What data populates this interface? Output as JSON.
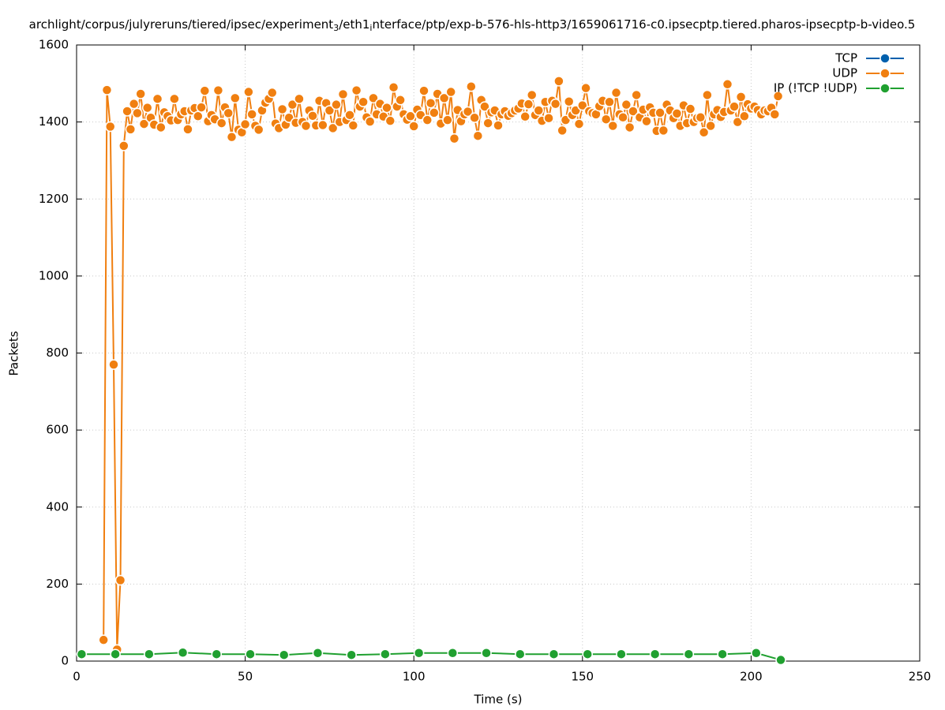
{
  "chart_data": {
    "type": "line",
    "title_parts": [
      "archlight/corpus/julyreruns/tiered/ipsec/experiment",
      "3",
      "/eth1",
      "i",
      "nterface/ptp/exp-b-576-hls-http3/1659061716-c0.ipsecptp.tiered.pharos-ipsecptp-b-video.5"
    ],
    "x_label": "Time (s)",
    "y_label": "Packets",
    "xlim": [
      0,
      250
    ],
    "xticks": [
      0,
      50,
      100,
      150,
      200,
      250
    ],
    "ylim": [
      0,
      1600
    ],
    "yticks": [
      0,
      200,
      400,
      600,
      800,
      1000,
      1200,
      1400,
      1600
    ],
    "grid": true,
    "legend": "top-right",
    "series": [
      {
        "name": "TCP",
        "color": "#0060ad",
        "x": [],
        "values": []
      },
      {
        "name": "UDP",
        "color": "#f07f10",
        "x": [
          8,
          9,
          10,
          11,
          12,
          13,
          14,
          15,
          16,
          17,
          18,
          19,
          20,
          21,
          22,
          23,
          24,
          25,
          26,
          27,
          28,
          29,
          30,
          31,
          32,
          33,
          34,
          35,
          36,
          37,
          38,
          39,
          40,
          41,
          42,
          43,
          44,
          45,
          46,
          47,
          48,
          49,
          50,
          51,
          52,
          53,
          54,
          55,
          56,
          57,
          58,
          59,
          60,
          61,
          62,
          63,
          64,
          65,
          66,
          67,
          68,
          69,
          70,
          71,
          72,
          73,
          74,
          75,
          76,
          77,
          78,
          79,
          80,
          81,
          82,
          83,
          84,
          85,
          86,
          87,
          88,
          89,
          90,
          91,
          92,
          93,
          94,
          95,
          96,
          97,
          98,
          99,
          100,
          101,
          102,
          103,
          104,
          105,
          106,
          107,
          108,
          109,
          110,
          111,
          112,
          113,
          114,
          115,
          116,
          117,
          118,
          119,
          120,
          121,
          122,
          123,
          124,
          125,
          126,
          127,
          128,
          129,
          130,
          131,
          132,
          133,
          134,
          135,
          136,
          137,
          138,
          139,
          140,
          141,
          142,
          143,
          144,
          145,
          146,
          147,
          148,
          149,
          150,
          151,
          152,
          153,
          154,
          155,
          156,
          157,
          158,
          159,
          160,
          161,
          162,
          163,
          164,
          165,
          166,
          167,
          168,
          169,
          170,
          171,
          172,
          173,
          174,
          175,
          176,
          177,
          178,
          179,
          180,
          181,
          182,
          183,
          184,
          185,
          186,
          187,
          188,
          189,
          190,
          191,
          192,
          193,
          194,
          195,
          196,
          197,
          198,
          199,
          200,
          201,
          202,
          203,
          204,
          205,
          206,
          207,
          208
        ],
        "values": [
          55,
          1483,
          1388,
          770,
          30,
          210,
          1338,
          1428,
          1381,
          1447,
          1423,
          1473,
          1395,
          1437,
          1411,
          1393,
          1460,
          1386,
          1425,
          1415,
          1404,
          1460,
          1405,
          1420,
          1428,
          1381,
          1430,
          1436,
          1415,
          1438,
          1481,
          1402,
          1418,
          1407,
          1482,
          1397,
          1438,
          1423,
          1361,
          1462,
          1380,
          1373,
          1394,
          1478,
          1420,
          1390,
          1380,
          1430,
          1450,
          1460,
          1476,
          1396,
          1384,
          1433,
          1393,
          1411,
          1445,
          1398,
          1460,
          1400,
          1390,
          1430,
          1416,
          1391,
          1455,
          1392,
          1449,
          1430,
          1384,
          1445,
          1400,
          1472,
          1405,
          1418,
          1391,
          1482,
          1440,
          1452,
          1412,
          1401,
          1462,
          1420,
          1447,
          1414,
          1437,
          1403,
          1490,
          1440,
          1457,
          1420,
          1406,
          1415,
          1389,
          1432,
          1418,
          1481,
          1405,
          1449,
          1424,
          1473,
          1396,
          1462,
          1405,
          1478,
          1357,
          1431,
          1402,
          1420,
          1427,
          1492,
          1411,
          1364,
          1457,
          1440,
          1397,
          1425,
          1430,
          1391,
          1420,
          1428,
          1416,
          1423,
          1430,
          1435,
          1448,
          1414,
          1446,
          1470,
          1418,
          1430,
          1403,
          1452,
          1410,
          1455,
          1447,
          1506,
          1378,
          1405,
          1453,
          1418,
          1430,
          1395,
          1443,
          1488,
          1428,
          1423,
          1420,
          1441,
          1455,
          1407,
          1452,
          1390,
          1476,
          1420,
          1412,
          1445,
          1386,
          1428,
          1470,
          1412,
          1432,
          1402,
          1438,
          1424,
          1377,
          1424,
          1378,
          1445,
          1430,
          1410,
          1422,
          1390,
          1443,
          1397,
          1434,
          1400,
          1410,
          1412,
          1373,
          1470,
          1390,
          1420,
          1431,
          1413,
          1426,
          1498,
          1430,
          1440,
          1400,
          1465,
          1415,
          1446,
          1435,
          1440,
          1431,
          1420,
          1430,
          1428,
          1437,
          1420,
          1467
        ]
      },
      {
        "name": "IP (!TCP  !UDP)",
        "color": "#20a030",
        "x": [
          1.5,
          11.5,
          21.5,
          31.5,
          41.5,
          51.5,
          61.5,
          71.5,
          81.5,
          91.5,
          101.5,
          111.5,
          121.5,
          131.5,
          141.5,
          151.5,
          161.5,
          171.5,
          181.5,
          191.5,
          201.5,
          208.8
        ],
        "values": [
          18,
          18,
          18,
          22,
          18,
          18,
          16,
          21,
          16,
          18,
          21,
          21,
          21,
          18,
          18,
          18,
          18,
          18,
          18,
          18,
          21,
          3
        ]
      }
    ]
  }
}
